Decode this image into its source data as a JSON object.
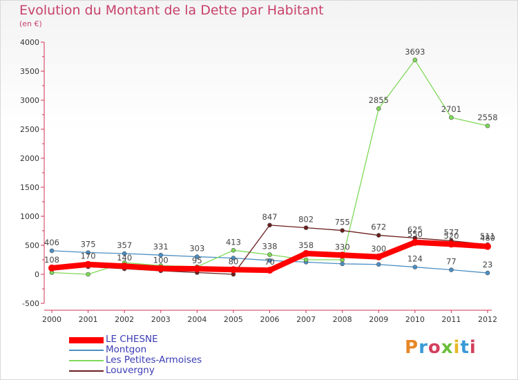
{
  "header": {
    "title": "Evolution du Montant de la Dette par Habitant",
    "unit": "(en €)"
  },
  "logo": {
    "text": "Proxiti",
    "colors": [
      "#e8882a",
      "#3a9ad8",
      "#d3405f",
      "#6bbf3a",
      "#e8b82a",
      "#3a9ad8",
      "#d3405f"
    ]
  },
  "chart_data": {
    "type": "line",
    "x": [
      "2000",
      "2001",
      "2002",
      "2003",
      "2004",
      "2005",
      "2006",
      "2007",
      "2008",
      "2009",
      "2010",
      "2011",
      "2012"
    ],
    "ylim": [
      -500,
      4000
    ],
    "yticks": [
      "-500",
      "0",
      "500",
      "1000",
      "1500",
      "2000",
      "2500",
      "3000",
      "3500",
      "4000"
    ],
    "grid": false,
    "legend_position": "bottom-left",
    "series": [
      {
        "name": "LE CHESNE",
        "color": "#ff0000",
        "values": [
          108,
          170,
          140,
          100,
          95,
          80,
          70,
          358,
          330,
          300,
          550,
          520,
          480
        ],
        "labels": [
          "108",
          "170",
          "140",
          "100",
          "95",
          "80",
          "70",
          "358",
          "330",
          "300",
          "550",
          "520",
          "480"
        ]
      },
      {
        "name": "Montgon",
        "color": "#4a8fc4",
        "values": [
          406,
          375,
          357,
          331,
          303,
          280,
          238,
          210,
          180,
          170,
          124,
          77,
          23
        ],
        "labels": [
          "406",
          "375",
          "357",
          "331",
          "303",
          "",
          "",
          "",
          "",
          "",
          "124",
          "77",
          "23"
        ]
      },
      {
        "name": "Les Petites-Armoises",
        "color": "#7ed957",
        "values": [
          30,
          0,
          200,
          150,
          130,
          413,
          338,
          250,
          250,
          2855,
          3693,
          2701,
          2558
        ],
        "labels": [
          "",
          "",
          "",
          "",
          "",
          "413",
          "338",
          "",
          "",
          "2855",
          "3693",
          "2701",
          "2558"
        ]
      },
      {
        "name": "Louvergny",
        "color": "#6b1d1d",
        "values": [
          120,
          130,
          95,
          60,
          30,
          0,
          847,
          802,
          755,
          672,
          625,
          577,
          511
        ],
        "labels": [
          "",
          "",
          "",
          "",
          "",
          "",
          "847",
          "802",
          "755",
          "672",
          "625",
          "577",
          "511"
        ]
      }
    ]
  }
}
